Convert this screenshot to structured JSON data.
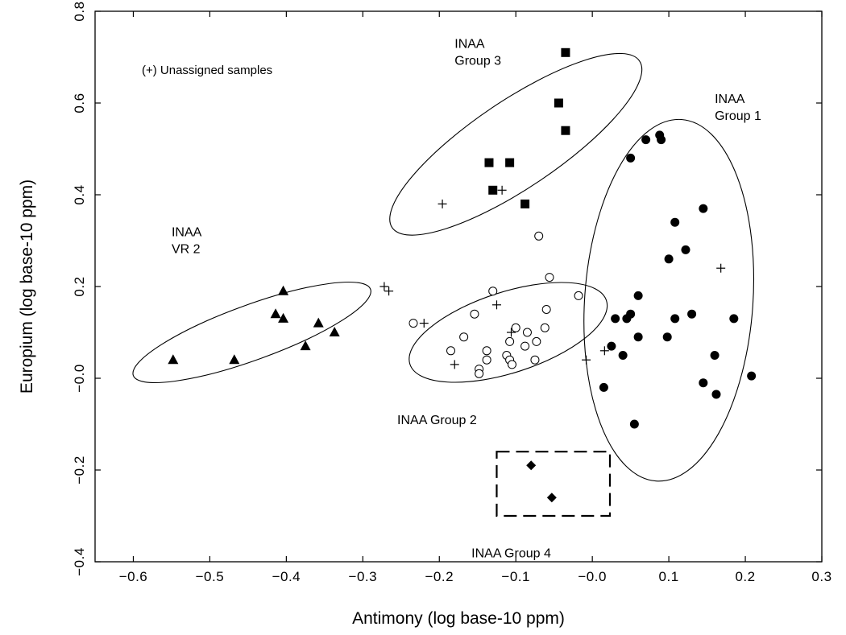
{
  "chart_data": {
    "type": "scatter",
    "xlabel": "Antimony (log base-10 ppm)",
    "ylabel": "Europium (log base-10 ppm)",
    "xlim": [
      -0.65,
      0.3
    ],
    "ylim": [
      -0.4,
      0.8
    ],
    "xticks": [
      -0.6,
      -0.5,
      -0.4,
      -0.3,
      -0.2,
      -0.1,
      0.0,
      0.1,
      0.2,
      0.3
    ],
    "yticks": [
      -0.4,
      -0.2,
      0.0,
      0.2,
      0.4,
      0.6,
      0.8
    ],
    "xtick_labels": [
      "−0.6",
      "−0.5",
      "−0.4",
      "−0.3",
      "−0.2",
      "−0.1",
      "−0.0",
      "0.1",
      "0.2",
      "0.3"
    ],
    "ytick_labels": [
      "−0.4",
      "−0.2",
      "−0.0",
      "0.2",
      "0.4",
      "0.6",
      "0.8"
    ],
    "grid": false,
    "note": "(+) Unassigned samples",
    "annotations": [
      {
        "lines": [
          "INAA",
          "Group 3"
        ],
        "x": -0.18,
        "y": 0.72
      },
      {
        "lines": [
          "INAA",
          "Group 1"
        ],
        "x": 0.16,
        "y": 0.6
      },
      {
        "lines": [
          "INAA",
          "VR 2"
        ],
        "x": -0.55,
        "y": 0.31
      },
      {
        "lines": [
          "INAA Group 2"
        ],
        "x": -0.255,
        "y": -0.1
      },
      {
        "lines": [
          "INAA Group 4"
        ],
        "x": -0.158,
        "y": -0.39
      }
    ],
    "ellipses": [
      {
        "group": "INAA Group 3",
        "cx": -0.1,
        "cy": 0.51,
        "rx": 0.195,
        "ry": 0.095,
        "angle_deg": -34
      },
      {
        "group": "INAA Group 1",
        "cx": 0.1,
        "cy": 0.17,
        "rx": 0.11,
        "ry": 0.395,
        "angle_deg": 4
      },
      {
        "group": "INAA VR 2",
        "cx": -0.445,
        "cy": 0.1,
        "rx": 0.165,
        "ry": 0.06,
        "angle_deg": -20
      },
      {
        "group": "INAA Group 2",
        "cx": -0.11,
        "cy": 0.1,
        "rx": 0.135,
        "ry": 0.088,
        "angle_deg": -18
      }
    ],
    "box": {
      "group": "INAA Group 4",
      "x0": -0.125,
      "x1": 0.023,
      "y0": -0.3,
      "y1": -0.16
    },
    "series": [
      {
        "name": "INAA Group 1",
        "marker": "filled-circle",
        "points": [
          [
            0.05,
            0.48
          ],
          [
            0.07,
            0.52
          ],
          [
            0.088,
            0.53
          ],
          [
            0.09,
            0.52
          ],
          [
            0.145,
            0.37
          ],
          [
            0.108,
            0.34
          ],
          [
            0.122,
            0.28
          ],
          [
            0.1,
            0.26
          ],
          [
            0.06,
            0.18
          ],
          [
            0.03,
            0.13
          ],
          [
            0.05,
            0.14
          ],
          [
            0.045,
            0.13
          ],
          [
            0.13,
            0.14
          ],
          [
            0.108,
            0.13
          ],
          [
            0.185,
            0.13
          ],
          [
            0.098,
            0.09
          ],
          [
            0.06,
            0.09
          ],
          [
            0.025,
            0.07
          ],
          [
            0.04,
            0.05
          ],
          [
            0.16,
            0.05
          ],
          [
            0.208,
            0.005
          ],
          [
            0.145,
            -0.01
          ],
          [
            0.162,
            -0.035
          ],
          [
            0.015,
            -0.02
          ],
          [
            0.055,
            -0.1
          ]
        ]
      },
      {
        "name": "INAA Group 2",
        "marker": "open-circle",
        "points": [
          [
            -0.07,
            0.31
          ],
          [
            -0.056,
            0.22
          ],
          [
            -0.13,
            0.19
          ],
          [
            -0.018,
            0.18
          ],
          [
            -0.06,
            0.15
          ],
          [
            -0.154,
            0.14
          ],
          [
            -0.1,
            0.11
          ],
          [
            -0.062,
            0.11
          ],
          [
            -0.085,
            0.1
          ],
          [
            -0.168,
            0.09
          ],
          [
            -0.108,
            0.08
          ],
          [
            -0.073,
            0.08
          ],
          [
            -0.185,
            0.06
          ],
          [
            -0.138,
            0.06
          ],
          [
            -0.088,
            0.07
          ],
          [
            -0.112,
            0.05
          ],
          [
            -0.108,
            0.04
          ],
          [
            -0.138,
            0.04
          ],
          [
            -0.075,
            0.04
          ],
          [
            -0.148,
            0.02
          ],
          [
            -0.105,
            0.03
          ],
          [
            -0.148,
            0.01
          ],
          [
            -0.234,
            0.12
          ]
        ]
      },
      {
        "name": "INAA Group 3",
        "marker": "filled-square",
        "points": [
          [
            -0.035,
            0.71
          ],
          [
            -0.044,
            0.6
          ],
          [
            -0.035,
            0.54
          ],
          [
            -0.135,
            0.47
          ],
          [
            -0.108,
            0.47
          ],
          [
            -0.13,
            0.41
          ],
          [
            -0.088,
            0.38
          ]
        ]
      },
      {
        "name": "INAA Group 4",
        "marker": "filled-diamond",
        "points": [
          [
            -0.08,
            -0.19
          ],
          [
            -0.053,
            -0.26
          ]
        ]
      },
      {
        "name": "INAA VR 2",
        "marker": "filled-triangle",
        "points": [
          [
            -0.548,
            0.04
          ],
          [
            -0.468,
            0.04
          ],
          [
            -0.404,
            0.19
          ],
          [
            -0.414,
            0.14
          ],
          [
            -0.404,
            0.13
          ],
          [
            -0.358,
            0.12
          ],
          [
            -0.337,
            0.1
          ],
          [
            -0.375,
            0.07
          ]
        ]
      },
      {
        "name": "(+) Unassigned samples",
        "marker": "plus",
        "points": [
          [
            -0.118,
            0.41
          ],
          [
            -0.196,
            0.38
          ],
          [
            -0.272,
            0.2
          ],
          [
            -0.266,
            0.19
          ],
          [
            -0.125,
            0.16
          ],
          [
            -0.22,
            0.12
          ],
          [
            -0.106,
            0.1
          ],
          [
            -0.18,
            0.03
          ],
          [
            -0.008,
            0.04
          ],
          [
            0.016,
            0.06
          ],
          [
            0.168,
            0.24
          ]
        ]
      }
    ]
  }
}
